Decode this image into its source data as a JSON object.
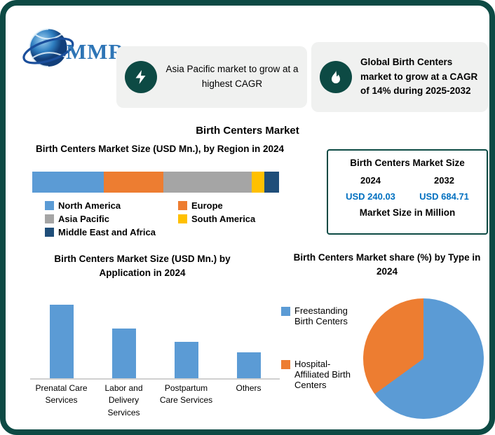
{
  "logo": {
    "text": "MMR"
  },
  "callouts": [
    {
      "icon": "lightning-icon",
      "text": "Asia Pacific market to grow at a highest CAGR"
    },
    {
      "icon": "flame-icon",
      "text": "Global Birth Centers market to grow at a CAGR of 14% during 2025-2032"
    }
  ],
  "main_title": "Birth Centers Market",
  "market_size_box": {
    "title": "Birth Centers Market Size",
    "year_start": "2024",
    "year_end": "2032",
    "value_start": "USD 240.03",
    "value_end": "USD 684.71",
    "footer": "Market Size in Million"
  },
  "colors": {
    "frame_teal": "#0d4a44",
    "callout_bg": "#f0f1f0",
    "value_blue": "#0070c0",
    "logo_blue": "#2e75b6"
  },
  "chart_data": [
    {
      "type": "bar",
      "subtype": "stacked-horizontal",
      "title": "Birth Centers Market Size (USD Mn.), by Region in 2024",
      "categories": [
        "North America",
        "Europe",
        "Asia Pacific",
        "South America",
        "Middle East and Africa"
      ],
      "values": [
        29,
        24,
        36,
        5,
        6
      ],
      "colors": [
        "#5b9bd5",
        "#ed7d31",
        "#a5a5a5",
        "#ffc000",
        "#1f4e79"
      ],
      "legend_position": "bottom",
      "axis": "none"
    },
    {
      "type": "bar",
      "title": "Birth Centers Market Size (USD Mn.) by Application in 2024",
      "categories": [
        "Prenatal Care Services",
        "Labor and Delivery Services",
        "Postpartum Care Services",
        "Others"
      ],
      "values": [
        108,
        72,
        53,
        38
      ],
      "ylim": [
        0,
        115
      ],
      "color": "#5b9bd5",
      "grid": false,
      "axis_labels": "none"
    },
    {
      "type": "pie",
      "title": "Birth Centers Market share (%) by Type in 2024",
      "categories": [
        "Freestanding Birth Centers",
        "Hospital-Affiliated Birth Centers"
      ],
      "values": [
        65,
        35
      ],
      "colors": [
        "#5b9bd5",
        "#ed7d31"
      ],
      "legend_position": "left"
    }
  ]
}
